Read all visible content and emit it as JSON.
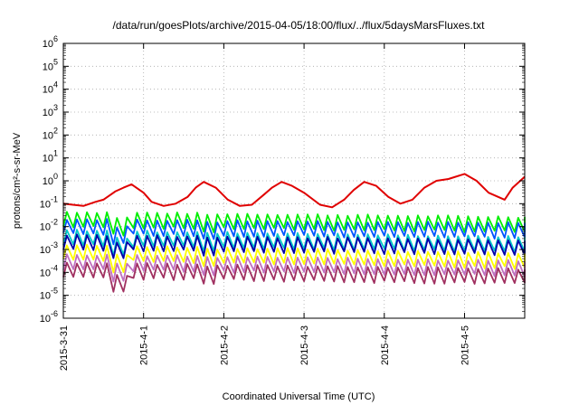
{
  "chart_data": {
    "type": "line",
    "title": "/data/run/goesPlots/archive/2015-04-05/18:00/flux/../flux/5daysMarsFluxes.txt",
    "xlabel": "Coordinated Universal Time (UTC)",
    "ylabel": "protons/cm²-s-sr-MeV",
    "yscale": "log",
    "ylim": [
      1e-06,
      1000000.0
    ],
    "xlim": [
      "2015-03-31 00:00",
      "2015-04-05 18:00"
    ],
    "grid": true,
    "legend": "none",
    "x_tick_labels": [
      "2015-3-31",
      "2015-4-1",
      "2015-4-2",
      "2015-4-3",
      "2015-4-4",
      "2015-4-5"
    ],
    "y_tick_labels": [
      {
        "base": "10",
        "exp": "-6"
      },
      {
        "base": "10",
        "exp": "-5"
      },
      {
        "base": "10",
        "exp": "-4"
      },
      {
        "base": "10",
        "exp": "-3"
      },
      {
        "base": "10",
        "exp": "-2"
      },
      {
        "base": "10",
        "exp": "-1"
      },
      {
        "base": "10",
        "exp": "0"
      },
      {
        "base": "10",
        "exp": "1"
      },
      {
        "base": "10",
        "exp": "2"
      },
      {
        "base": "10",
        "exp": "3"
      },
      {
        "base": "10",
        "exp": "4"
      },
      {
        "base": "10",
        "exp": "5"
      },
      {
        "base": "10",
        "exp": "6"
      }
    ],
    "series": [
      {
        "color": "#e00000",
        "x_days": [
          0,
          0.12,
          0.25,
          0.4,
          0.5,
          0.65,
          0.75,
          0.85,
          1.0,
          1.1,
          1.25,
          1.4,
          1.55,
          1.65,
          1.75,
          1.9,
          2.05,
          2.2,
          2.35,
          2.5,
          2.6,
          2.72,
          2.85,
          3.0,
          3.2,
          3.35,
          3.5,
          3.62,
          3.75,
          3.9,
          4.05,
          4.2,
          4.35,
          4.5,
          4.65,
          4.8,
          5.0,
          5.15,
          5.3,
          5.5,
          5.6,
          5.75
        ],
        "values": [
          0.1,
          0.09,
          0.08,
          0.12,
          0.15,
          0.35,
          0.5,
          0.7,
          0.3,
          0.12,
          0.08,
          0.1,
          0.2,
          0.5,
          0.9,
          0.5,
          0.15,
          0.08,
          0.09,
          0.25,
          0.5,
          0.9,
          0.6,
          0.3,
          0.09,
          0.07,
          0.15,
          0.4,
          0.9,
          0.6,
          0.2,
          0.1,
          0.15,
          0.5,
          1.0,
          1.2,
          2.0,
          1.0,
          0.3,
          0.15,
          0.5,
          1.5
        ]
      },
      {
        "color": "#00ee00",
        "base": [
          0.025,
          0.015
        ],
        "dip": 0.45,
        "dip_mult": 0.6
      },
      {
        "color": "#0055ff",
        "base": [
          0.012,
          0.008
        ],
        "dip": 0.45,
        "dip_mult": 0.5
      },
      {
        "color": "#00c8c8",
        "base": [
          0.004,
          0.002
        ],
        "dip": 0.5,
        "dip_mult": 0.5
      },
      {
        "color": "#0000aa",
        "base": [
          0.0025,
          0.0015
        ],
        "dip": 0.45,
        "dip_mult": 0.5
      },
      {
        "color": "#ffff00",
        "base": [
          0.0009,
          0.0004
        ],
        "dip": 0.5,
        "dip_mult": 0.4
      },
      {
        "color": "#c070c0",
        "base": [
          0.00035,
          0.00018
        ],
        "dip": 0.55,
        "dip_mult": 0.4
      },
      {
        "color": "#a03060",
        "base": [
          0.00015,
          8e-05
        ],
        "dip": 0.6,
        "dip_mult": 0.3
      }
    ]
  }
}
